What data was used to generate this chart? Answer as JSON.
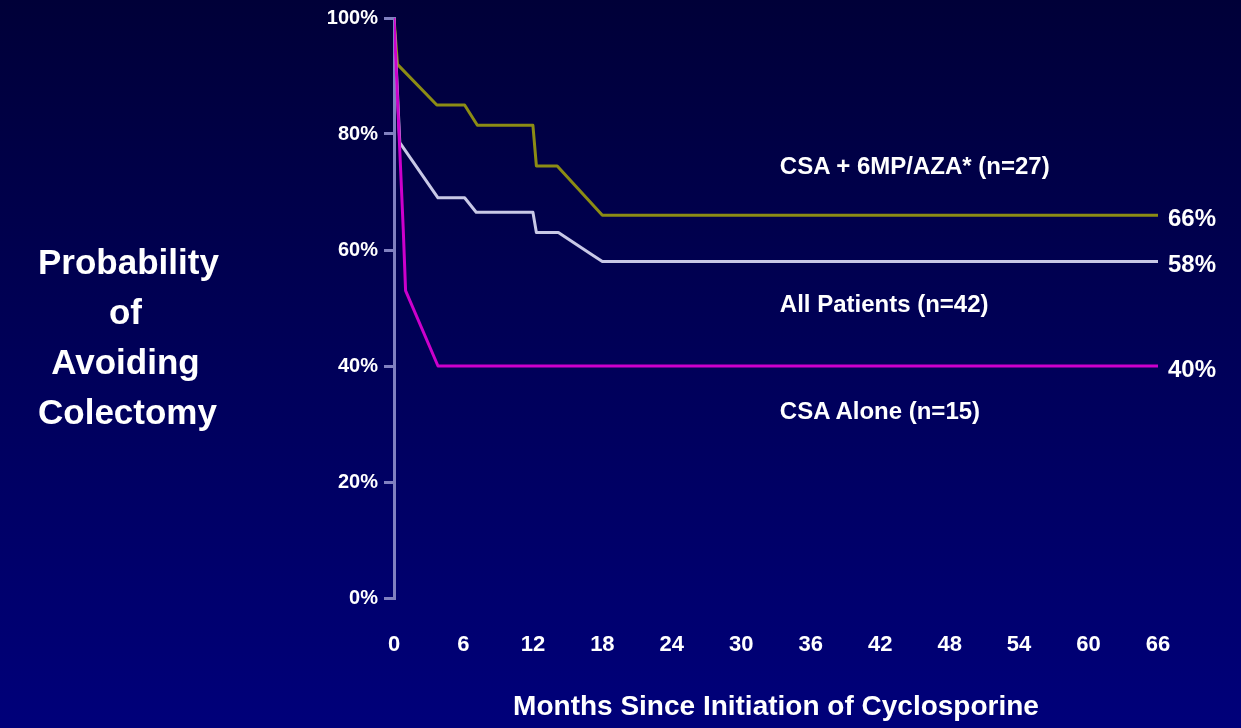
{
  "chart_data": {
    "type": "line",
    "xlabel": "Months Since Initiation of Cyclosporine",
    "ylabel": "Probability of Avoiding Colectomy",
    "xlim": [
      0,
      66
    ],
    "xticks": [
      0,
      6,
      12,
      18,
      24,
      30,
      36,
      42,
      48,
      54,
      60,
      66
    ],
    "ylim": [
      0,
      100
    ],
    "yticks": [
      {
        "value": 0,
        "label": "0%"
      },
      {
        "value": 20,
        "label": "20%"
      },
      {
        "value": 40,
        "label": "40%"
      },
      {
        "value": 60,
        "label": "60%"
      },
      {
        "value": 80,
        "label": "80%"
      },
      {
        "value": 100,
        "label": "100%"
      }
    ],
    "grid": false,
    "legend": false,
    "marker": "none",
    "line_style": "solid",
    "series": [
      {
        "name": "CSA + 6MP/AZA* (n=27)",
        "color": "#8c8c14",
        "x": [
          0,
          0.3,
          3.7,
          6.1,
          7.2,
          12,
          12.3,
          14.1,
          18,
          66
        ],
        "values": [
          100,
          92,
          85,
          85,
          81.5,
          81.5,
          74.5,
          74.5,
          66,
          66
        ],
        "value_labels": [
          null,
          null,
          null,
          null,
          null,
          null,
          null,
          null,
          null,
          "66%"
        ]
      },
      {
        "name": "All Patients (n=42)",
        "color": "#c8c8e6",
        "x": [
          0,
          0.5,
          3.8,
          6.1,
          7.1,
          12,
          12.3,
          14.2,
          18,
          66
        ],
        "values": [
          100,
          78.5,
          69,
          69,
          66.5,
          66.5,
          63,
          63,
          58,
          58
        ],
        "value_labels": [
          null,
          null,
          null,
          null,
          null,
          null,
          null,
          null,
          null,
          "58%"
        ]
      },
      {
        "name": "CSA Alone (n=15)",
        "color": "#cc00cc",
        "x": [
          0,
          0.8,
          1,
          3.8,
          66
        ],
        "values": [
          100,
          63.5,
          53,
          40,
          40
        ],
        "value_labels": [
          null,
          null,
          null,
          null,
          "40%"
        ]
      }
    ]
  }
}
